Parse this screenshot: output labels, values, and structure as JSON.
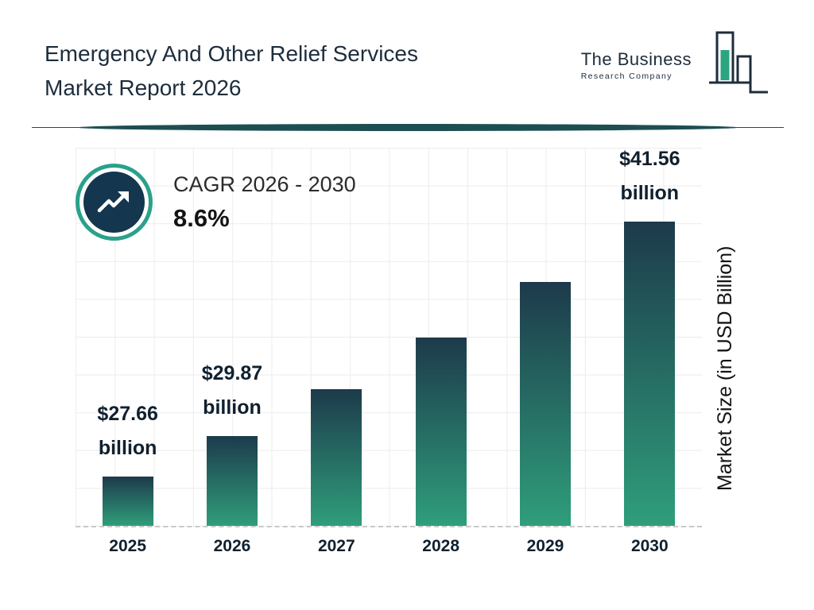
{
  "page": {
    "title_line1": "Emergency And Other Relief Services",
    "title_line2": "Market Report 2026"
  },
  "logo": {
    "line1": "The Business",
    "line2": "Research Company"
  },
  "cagr": {
    "label": "CAGR 2026 - 2030",
    "value": "8.6%"
  },
  "chart_data": {
    "type": "bar",
    "title": "Emergency And Other Relief Services Market Report 2026",
    "categories": [
      "2025",
      "2026",
      "2027",
      "2028",
      "2029",
      "2030"
    ],
    "values": [
      27.66,
      29.87,
      32.44,
      35.23,
      38.26,
      41.56
    ],
    "data_labels": [
      "$27.66 billion",
      "$29.87 billion",
      null,
      null,
      null,
      "$41.56 billion"
    ],
    "ylabel": "Market Size (in USD Billion)",
    "ylim": [
      25,
      45.5
    ],
    "grid": true,
    "legend": "none",
    "cagr_annotation": "CAGR 2026 - 2030 : 8.6%",
    "bar_gradient_top": "#1d3a4b",
    "bar_gradient_bottom": "#2f9e7b"
  },
  "colors": {
    "title_navy": "#1d2d3c",
    "accent_teal": "#2aa18b",
    "divider_teal": "#1c4f52",
    "circle_fill": "#14364e"
  }
}
